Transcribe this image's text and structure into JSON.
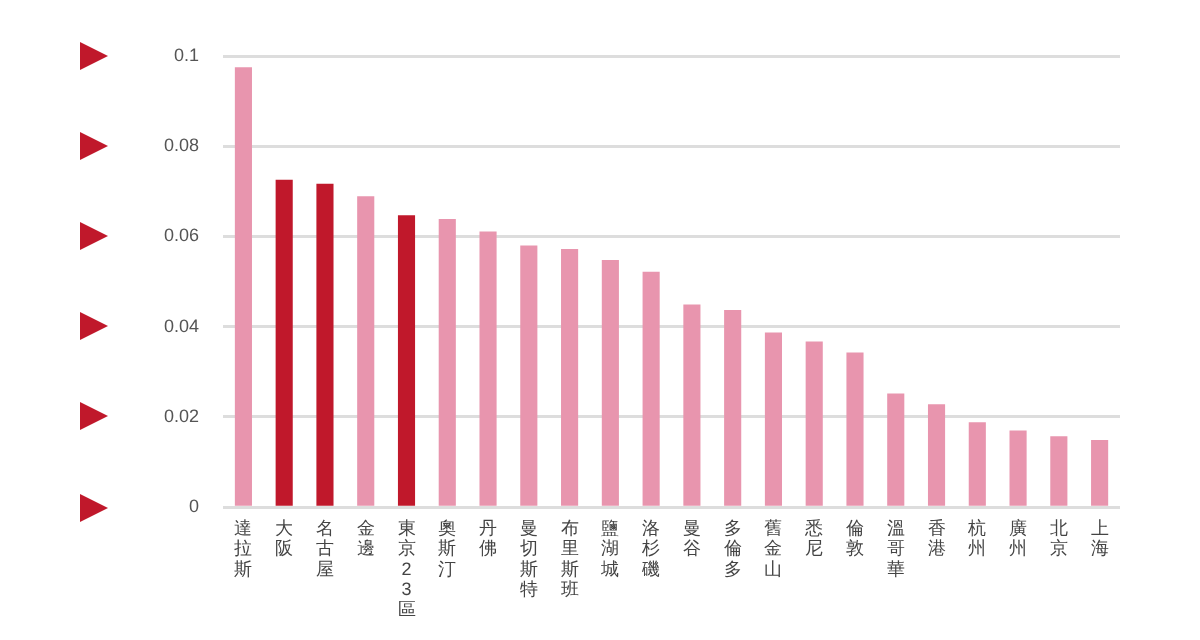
{
  "chart_data": {
    "type": "bar",
    "categories": [
      "達拉斯",
      "大阪",
      "名古屋",
      "金邊",
      "東京23區",
      "奧斯汀",
      "丹佛",
      "曼切斯特",
      "布里斯班",
      "鹽湖城",
      "洛杉磯",
      "曼谷",
      "多倫多",
      "舊金山",
      "悉尼",
      "倫敦",
      "溫哥華",
      "香港",
      "杭州",
      "廣州",
      "北京",
      "上海"
    ],
    "values": [
      0.0975,
      0.0726,
      0.0717,
      0.0689,
      0.0647,
      0.0639,
      0.0611,
      0.058,
      0.0572,
      0.0548,
      0.0522,
      0.0449,
      0.0437,
      0.0387,
      0.0367,
      0.0343,
      0.0252,
      0.0228,
      0.0188,
      0.017,
      0.0157,
      0.0149
    ],
    "colors": [
      "#e895ae",
      "#c0182b",
      "#c0182b",
      "#e895ae",
      "#c0182b",
      "#e895ae",
      "#e895ae",
      "#e895ae",
      "#e895ae",
      "#e895ae",
      "#e895ae",
      "#e895ae",
      "#e895ae",
      "#e895ae",
      "#e895ae",
      "#e895ae",
      "#e895ae",
      "#e895ae",
      "#e895ae",
      "#e895ae",
      "#e895ae",
      "#e895ae"
    ],
    "ylim": [
      0,
      0.1
    ],
    "yticks": [
      0,
      0.02,
      0.04,
      0.06,
      0.08,
      0.1
    ],
    "grid": "y",
    "legend": false
  }
}
